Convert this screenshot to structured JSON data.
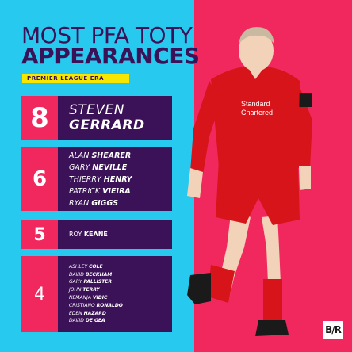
{
  "header": {
    "title_line1": "MOST PFA TOTY",
    "title_line2": "APPEARANCES",
    "subtitle": "PREMIER LEAGUE ERA"
  },
  "rows": [
    {
      "count": "8",
      "players": [
        {
          "first": "STEVEN",
          "last": "GERRARD"
        }
      ]
    },
    {
      "count": "6",
      "players": [
        {
          "first": "ALAN",
          "last": "SHEARER"
        },
        {
          "first": "GARY",
          "last": "NEVILLE"
        },
        {
          "first": "THIERRY",
          "last": "HENRY"
        },
        {
          "first": "PATRICK",
          "last": "VIEIRA"
        },
        {
          "first": "RYAN",
          "last": "GIGGS"
        }
      ]
    },
    {
      "count": "5",
      "players": [
        {
          "first": "ROY",
          "last": "KEANE"
        }
      ]
    },
    {
      "count": "4",
      "players": [
        {
          "first": "ASHLEY",
          "last": "COLE"
        },
        {
          "first": "DAVID",
          "last": "BECKHAM"
        },
        {
          "first": "GARY",
          "last": "PALLISTER"
        },
        {
          "first": "JOHN",
          "last": "TERRY"
        },
        {
          "first": "NEMANJA",
          "last": "VIDIC"
        },
        {
          "first": "CRISTIANO",
          "last": "RONALDO"
        },
        {
          "first": "EDEN",
          "last": "HAZARD"
        },
        {
          "first": "DAVID",
          "last": "DE GEA"
        }
      ]
    }
  ],
  "player_image": {
    "shirt_sponsor": "Standard Chartered"
  },
  "brand": {
    "logo_text": "B/R"
  },
  "colors": {
    "cyan": "#27c9ef",
    "pink": "#f0285e",
    "purple": "#3b1158",
    "yellow": "#f6e600"
  }
}
